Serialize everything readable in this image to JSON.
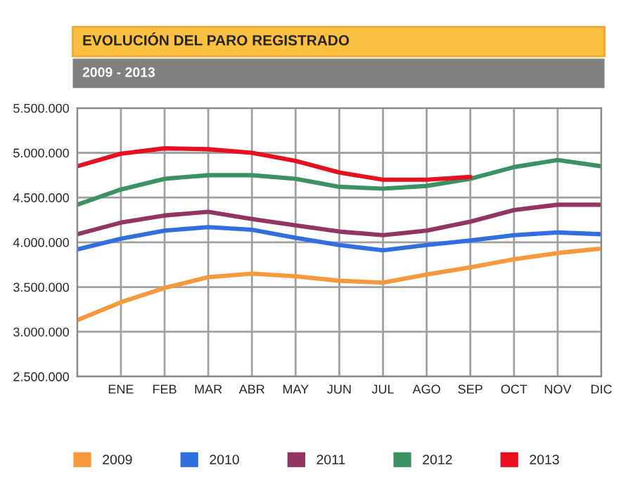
{
  "chart_data": {
    "type": "line",
    "title": "EVOLUCIÓN DEL PARO REGISTRADO",
    "subtitle": "2009 - 2013",
    "categories": [
      null,
      "ENE",
      "FEB",
      "MAR",
      "ABR",
      "MAY",
      "JUN",
      "JUL",
      "AGO",
      "SEP",
      "OCT",
      "NOV",
      "DIC"
    ],
    "series": [
      {
        "name": "2009",
        "color": "#f7993a",
        "values": [
          3130000,
          3330000,
          3490000,
          3610000,
          3650000,
          3620000,
          3570000,
          3550000,
          3640000,
          3720000,
          3810000,
          3880000,
          3930000
        ]
      },
      {
        "name": "2010",
        "color": "#2f6fe0",
        "values": [
          3920000,
          4040000,
          4130000,
          4170000,
          4140000,
          4050000,
          3970000,
          3910000,
          3970000,
          4020000,
          4080000,
          4110000,
          4090000
        ]
      },
      {
        "name": "2011",
        "color": "#933462",
        "values": [
          4090000,
          4220000,
          4300000,
          4340000,
          4260000,
          4190000,
          4120000,
          4080000,
          4130000,
          4230000,
          4360000,
          4420000,
          4420000
        ]
      },
      {
        "name": "2012",
        "color": "#3a9162",
        "values": [
          4420000,
          4590000,
          4710000,
          4750000,
          4750000,
          4710000,
          4620000,
          4600000,
          4630000,
          4710000,
          4840000,
          4920000,
          4850000
        ]
      },
      {
        "name": "2013",
        "color": "#e8101f",
        "values": [
          4850000,
          4990000,
          5050000,
          5040000,
          5000000,
          4910000,
          4780000,
          4700000,
          4700000,
          4730000,
          null,
          null,
          null
        ]
      }
    ],
    "ylim": [
      2500000,
      5500000
    ],
    "yticks": [
      {
        "value": 2500000,
        "label": "2.500.000"
      },
      {
        "value": 3000000,
        "label": "3.000.000"
      },
      {
        "value": 3500000,
        "label": "3.500.000"
      },
      {
        "value": 4000000,
        "label": "4.000.000"
      },
      {
        "value": 4500000,
        "label": "4.500.000"
      },
      {
        "value": 5000000,
        "label": "5.000.000"
      },
      {
        "value": 5500000,
        "label": "5.500.000"
      }
    ],
    "grid": true,
    "legend": "bottom",
    "marker": "none",
    "line_style": "solid"
  }
}
